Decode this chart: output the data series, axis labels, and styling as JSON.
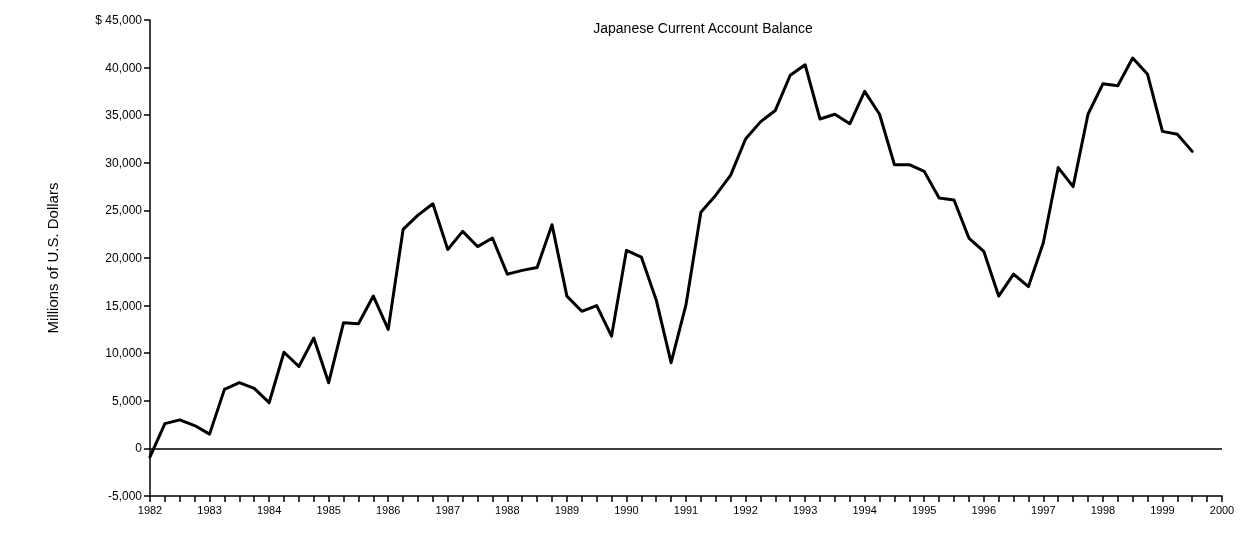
{
  "chart_data": {
    "type": "line",
    "title": "Japanese Current Account Balance",
    "ylabel": "Millions of U.S. Dollars",
    "x": [
      1982,
      1982.25,
      1982.5,
      1982.75,
      1983,
      1983.25,
      1983.5,
      1983.75,
      1984,
      1984.25,
      1984.5,
      1984.75,
      1985,
      1985.25,
      1985.5,
      1985.75,
      1986,
      1986.25,
      1986.5,
      1986.75,
      1987,
      1987.25,
      1987.5,
      1987.75,
      1988,
      1988.25,
      1988.5,
      1988.75,
      1989,
      1989.25,
      1989.5,
      1989.75,
      1990,
      1990.25,
      1990.5,
      1990.75,
      1991,
      1991.25,
      1991.5,
      1991.75,
      1992,
      1992.25,
      1992.5,
      1992.75,
      1993,
      1993.25,
      1993.5,
      1993.75,
      1994,
      1994.25,
      1994.5,
      1994.75,
      1995,
      1995.25,
      1995.5,
      1995.75,
      1996,
      1996.25,
      1996.5,
      1996.75,
      1997,
      1997.25,
      1997.5,
      1997.75,
      1998,
      1998.25,
      1998.5,
      1998.75,
      1999,
      1999.25,
      1999.5
    ],
    "series": [
      {
        "color": "#000000",
        "values": [
          -900,
          2600,
          3000,
          2400,
          1500,
          6200,
          6900,
          6300,
          4800,
          10100,
          8600,
          11600,
          6900,
          13200,
          13100,
          16000,
          12500,
          23000,
          24500,
          25700,
          20900,
          22800,
          21200,
          22100,
          18300,
          18700,
          19000,
          23500,
          16000,
          14400,
          15000,
          11800,
          20800,
          20100,
          15600,
          9000,
          15100,
          24800,
          26600,
          28700,
          32500,
          34300,
          35500,
          39200,
          40300,
          34600,
          35100,
          34100,
          37500,
          35100,
          29800,
          29800,
          29100,
          26300,
          26100,
          22100,
          20700,
          16000,
          18300,
          17000,
          21600,
          29500,
          27500,
          35100,
          38300,
          38100,
          41000,
          39300,
          33300,
          33000,
          31200
        ]
      }
    ],
    "xlim": [
      1982,
      2000
    ],
    "xticks": [
      1982,
      {
        "value": 1982.25,
        "label": null
      },
      {
        "value": 1982.5,
        "label": null
      },
      {
        "value": 1982.75,
        "label": null
      },
      1983,
      {
        "value": 1983.25,
        "label": null
      },
      {
        "value": 1983.5,
        "label": null
      },
      {
        "value": 1983.75,
        "label": null
      },
      1984,
      {
        "value": 1984.25,
        "label": null
      },
      {
        "value": 1984.5,
        "label": null
      },
      {
        "value": 1984.75,
        "label": null
      },
      1985,
      {
        "value": 1985.25,
        "label": null
      },
      {
        "value": 1985.5,
        "label": null
      },
      {
        "value": 1985.75,
        "label": null
      },
      1986,
      {
        "value": 1986.25,
        "label": null
      },
      {
        "value": 1986.5,
        "label": null
      },
      {
        "value": 1986.75,
        "label": null
      },
      1987,
      {
        "value": 1987.25,
        "label": null
      },
      {
        "value": 1987.5,
        "label": null
      },
      {
        "value": 1987.75,
        "label": null
      },
      1988,
      {
        "value": 1988.25,
        "label": null
      },
      {
        "value": 1988.5,
        "label": null
      },
      {
        "value": 1988.75,
        "label": null
      },
      1989,
      {
        "value": 1989.25,
        "label": null
      },
      {
        "value": 1989.5,
        "label": null
      },
      {
        "value": 1989.75,
        "label": null
      },
      1990,
      {
        "value": 1990.25,
        "label": null
      },
      {
        "value": 1990.5,
        "label": null
      },
      {
        "value": 1990.75,
        "label": null
      },
      1991,
      {
        "value": 1991.25,
        "label": null
      },
      {
        "value": 1991.5,
        "label": null
      },
      {
        "value": 1991.75,
        "label": null
      },
      1992,
      {
        "value": 1992.25,
        "label": null
      },
      {
        "value": 1992.5,
        "label": null
      },
      {
        "value": 1992.75,
        "label": null
      },
      1993,
      {
        "value": 1993.25,
        "label": null
      },
      {
        "value": 1993.5,
        "label": null
      },
      {
        "value": 1993.75,
        "label": null
      },
      1994,
      {
        "value": 1994.25,
        "label": null
      },
      {
        "value": 1994.5,
        "label": null
      },
      {
        "value": 1994.75,
        "label": null
      },
      1995,
      {
        "value": 1995.25,
        "label": null
      },
      {
        "value": 1995.5,
        "label": null
      },
      {
        "value": 1995.75,
        "label": null
      },
      1996,
      {
        "value": 1996.25,
        "label": null
      },
      {
        "value": 1996.5,
        "label": null
      },
      {
        "value": 1996.75,
        "label": null
      },
      1997,
      {
        "value": 1997.25,
        "label": null
      },
      {
        "value": 1997.5,
        "label": null
      },
      {
        "value": 1997.75,
        "label": null
      },
      1998,
      {
        "value": 1998.25,
        "label": null
      },
      {
        "value": 1998.5,
        "label": null
      },
      {
        "value": 1998.75,
        "label": null
      },
      1999,
      {
        "value": 1999.25,
        "label": null
      },
      {
        "value": 1999.5,
        "label": null
      },
      {
        "value": 1999.75,
        "label": null
      },
      2000
    ],
    "ylim": [
      -5000,
      45000
    ],
    "yticks": [
      {
        "value": -5000,
        "label": "-5,000"
      },
      {
        "value": 0,
        "label": "0"
      },
      {
        "value": 5000,
        "label": "5,000"
      },
      {
        "value": 10000,
        "label": "10,000"
      },
      {
        "value": 15000,
        "label": "15,000"
      },
      {
        "value": 20000,
        "label": "20,000"
      },
      {
        "value": 25000,
        "label": "25,000"
      },
      {
        "value": 30000,
        "label": "30,000"
      },
      {
        "value": 35000,
        "label": "35,000"
      },
      {
        "value": 40000,
        "label": "40,000"
      },
      {
        "value": 45000,
        "label": "$ 45,000"
      }
    ],
    "ref_lines": [
      {
        "axis": "y",
        "value": 0,
        "color": "#000000"
      }
    ],
    "grid": false,
    "marker": "none",
    "line_style": "solid"
  }
}
